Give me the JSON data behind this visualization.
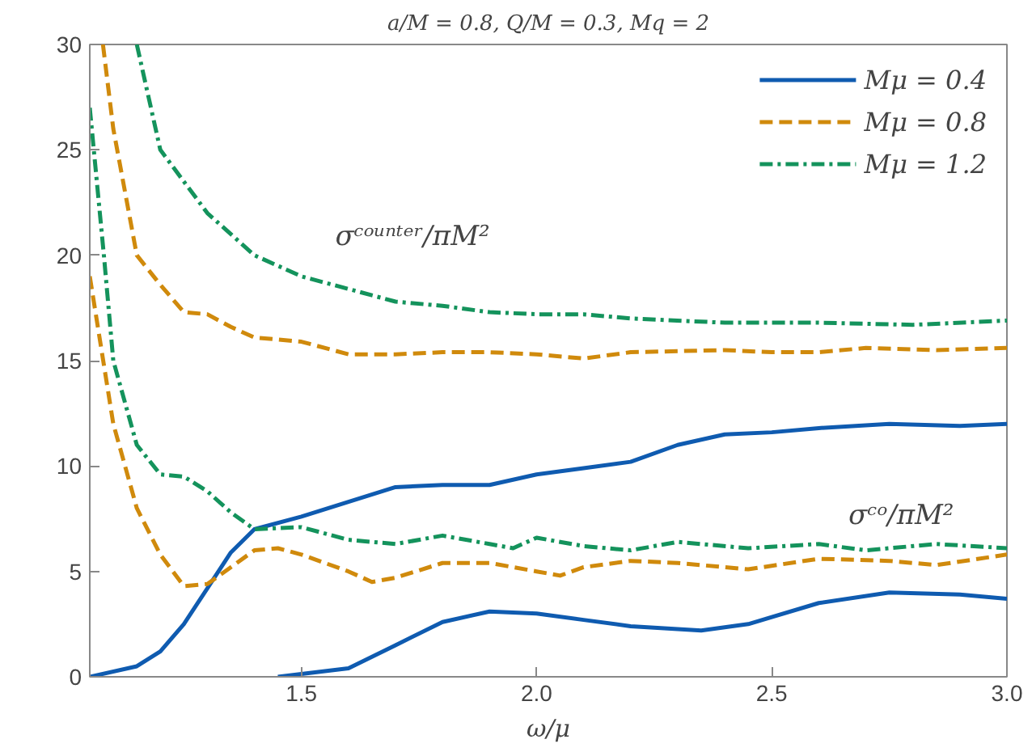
{
  "chart_data": {
    "type": "line",
    "title": "a/M = 0.8, Q/M = 0.3, Mq = 2",
    "xlabel": "ω/μ",
    "xlim": [
      1.05,
      3.0
    ],
    "ylim": [
      0,
      30
    ],
    "xticks": [
      {
        "value": 1.5,
        "label": "1.5"
      },
      {
        "value": 2.0,
        "label": "2.0"
      },
      {
        "value": 2.5,
        "label": "2.5"
      },
      {
        "value": 3.0,
        "label": "3.0"
      }
    ],
    "yticks": [
      0,
      5,
      10,
      15,
      20,
      25,
      30
    ],
    "grid": false,
    "legend": "top right",
    "marker": "none",
    "annotations": [
      "σᶜᵒᵘⁿᵗᵉʳ/πM²",
      "σᶜᵒ/πM²"
    ],
    "series": [
      {
        "name": "Mμ = 0.4",
        "color": "#0f5bb0",
        "line_style": "solid",
        "x": [
          1.05,
          1.15,
          1.2,
          1.25,
          1.3,
          1.35,
          1.4,
          1.5,
          1.6,
          1.7,
          1.8,
          1.9,
          2.0,
          2.1,
          2.2,
          2.3,
          2.4,
          2.5,
          2.6,
          2.75,
          2.9,
          3.0
        ],
        "values": [
          0,
          0.5,
          1.2,
          2.5,
          4.2,
          5.9,
          7.0,
          7.6,
          8.3,
          9.0,
          9.1,
          9.1,
          9.6,
          9.9,
          10.2,
          11.0,
          11.5,
          11.6,
          11.8,
          12.0,
          11.9,
          12.0
        ]
      },
      {
        "name": "Mμ = 0.8",
        "color": "#d08a0c",
        "line_style": "dashed",
        "x": [
          1.078,
          1.1,
          1.15,
          1.2,
          1.25,
          1.3,
          1.35,
          1.4,
          1.5,
          1.6,
          1.7,
          1.8,
          1.9,
          2.0,
          2.1,
          2.2,
          2.4,
          2.5,
          2.6,
          2.7,
          2.85,
          3.0
        ],
        "values": [
          30,
          26,
          20,
          18.6,
          17.3,
          17.2,
          16.6,
          16.1,
          15.9,
          15.3,
          15.3,
          15.4,
          15.4,
          15.3,
          15.1,
          15.4,
          15.5,
          15.4,
          15.4,
          15.6,
          15.5,
          15.6
        ]
      },
      {
        "name": "Mμ = 1.2",
        "color": "#14935c",
        "line_style": "dashdot",
        "x": [
          1.15,
          1.2,
          1.25,
          1.3,
          1.4,
          1.5,
          1.6,
          1.7,
          1.8,
          1.9,
          2.0,
          2.1,
          2.2,
          2.4,
          2.6,
          2.8,
          3.0
        ],
        "values": [
          30,
          25,
          23.5,
          22,
          20,
          19,
          18.4,
          17.8,
          17.6,
          17.3,
          17.2,
          17.2,
          17.0,
          16.8,
          16.8,
          16.7,
          16.9
        ]
      },
      {
        "color": "#0f5bb0",
        "line_style": "solid",
        "x": [
          1.45,
          1.6,
          1.7,
          1.8,
          1.9,
          2.0,
          2.1,
          2.2,
          2.35,
          2.45,
          2.6,
          2.75,
          2.9,
          3.0
        ],
        "values": [
          0,
          0.4,
          1.5,
          2.6,
          3.1,
          3.0,
          2.7,
          2.4,
          2.2,
          2.5,
          3.5,
          4.0,
          3.9,
          3.7
        ]
      },
      {
        "color": "#d08a0c",
        "line_style": "dashed",
        "x": [
          1.05,
          1.1,
          1.15,
          1.2,
          1.25,
          1.3,
          1.35,
          1.4,
          1.45,
          1.5,
          1.6,
          1.65,
          1.7,
          1.8,
          1.9,
          2.0,
          2.05,
          2.1,
          2.2,
          2.3,
          2.45,
          2.6,
          2.75,
          2.85,
          3.0
        ],
        "values": [
          19,
          12,
          8,
          5.8,
          4.3,
          4.4,
          5.2,
          6.0,
          6.1,
          5.8,
          5.0,
          4.5,
          4.7,
          5.4,
          5.4,
          5.0,
          4.8,
          5.2,
          5.5,
          5.4,
          5.1,
          5.6,
          5.5,
          5.3,
          5.8
        ]
      },
      {
        "color": "#14935c",
        "line_style": "dashdot",
        "x": [
          1.05,
          1.08,
          1.1,
          1.15,
          1.2,
          1.25,
          1.3,
          1.35,
          1.4,
          1.5,
          1.6,
          1.7,
          1.8,
          1.9,
          1.95,
          2.0,
          2.1,
          2.2,
          2.3,
          2.45,
          2.6,
          2.7,
          2.85,
          3.0
        ],
        "values": [
          27,
          20,
          15,
          11,
          9.6,
          9.5,
          8.8,
          7.8,
          7.0,
          7.1,
          6.5,
          6.3,
          6.7,
          6.3,
          6.1,
          6.6,
          6.2,
          6.0,
          6.4,
          6.1,
          6.3,
          6.0,
          6.3,
          6.1
        ]
      }
    ]
  }
}
